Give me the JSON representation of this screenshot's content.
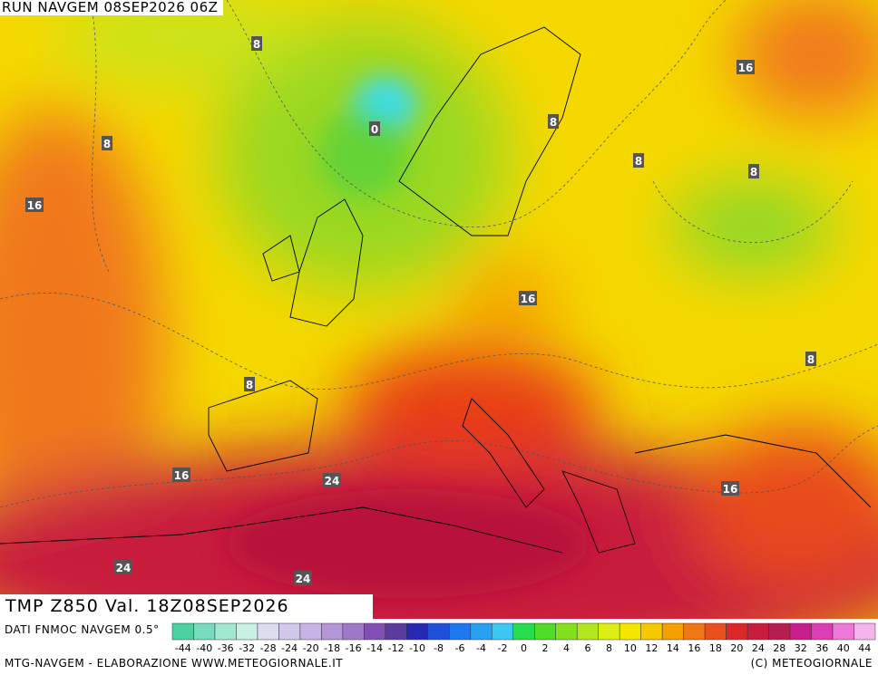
{
  "header": {
    "run": "RUN NAVGEM 08SEP2026 06Z",
    "title": "TMP Z850 Val. 18Z08SEP2026"
  },
  "contour_labels": [
    "8",
    "16",
    "0",
    "8",
    "8",
    "8",
    "8",
    "16",
    "16",
    "8",
    "8",
    "16",
    "24",
    "16",
    "24",
    "24"
  ],
  "legend": {
    "source": "DATI FNMOC NAVGEM 0.5°",
    "items": [
      {
        "label": "-44",
        "color": "#4cd2a0"
      },
      {
        "label": "-40",
        "color": "#78dcbc"
      },
      {
        "label": "-36",
        "color": "#a0e8d0"
      },
      {
        "label": "-32",
        "color": "#c8f0e4"
      },
      {
        "label": "-28",
        "color": "#dcdcf0"
      },
      {
        "label": "-24",
        "color": "#d2c8ec"
      },
      {
        "label": "-20",
        "color": "#c8b4e4"
      },
      {
        "label": "-18",
        "color": "#b496d8"
      },
      {
        "label": "-16",
        "color": "#a078c8"
      },
      {
        "label": "-14",
        "color": "#8250b4"
      },
      {
        "label": "-12",
        "color": "#5a3c9c"
      },
      {
        "label": "-10",
        "color": "#2828b4"
      },
      {
        "label": "-8",
        "color": "#1e50dc"
      },
      {
        "label": "-6",
        "color": "#1e78f0"
      },
      {
        "label": "-4",
        "color": "#28a0f0"
      },
      {
        "label": "-2",
        "color": "#3cc8f0"
      },
      {
        "label": "0",
        "color": "#28dc50"
      },
      {
        "label": "2",
        "color": "#50dc28"
      },
      {
        "label": "4",
        "color": "#82e01e"
      },
      {
        "label": "6",
        "color": "#b4e61e"
      },
      {
        "label": "8",
        "color": "#dcee14"
      },
      {
        "label": "10",
        "color": "#f5e600"
      },
      {
        "label": "12",
        "color": "#f5c800"
      },
      {
        "label": "14",
        "color": "#f5a000"
      },
      {
        "label": "16",
        "color": "#f07814"
      },
      {
        "label": "18",
        "color": "#e8501e"
      },
      {
        "label": "20",
        "color": "#dc2828"
      },
      {
        "label": "24",
        "color": "#c81e3c"
      },
      {
        "label": "28",
        "color": "#b41e50"
      },
      {
        "label": "32",
        "color": "#c81e8c"
      },
      {
        "label": "36",
        "color": "#dc3cb4"
      },
      {
        "label": "40",
        "color": "#ec78d8"
      },
      {
        "label": "44",
        "color": "#f5b4ec"
      }
    ]
  },
  "footer": {
    "left": "MTG-NAVGEM - ELABORAZIONE WWW.METEOGIORNALE.IT",
    "right": "(C) METEOGIORNALE"
  }
}
